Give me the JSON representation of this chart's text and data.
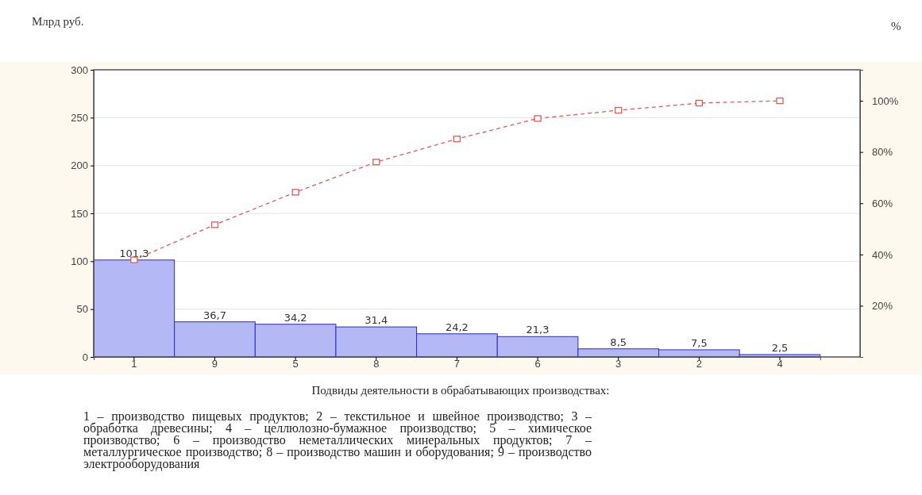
{
  "chart_data": {
    "type": "bar",
    "ylabel": "Млрд руб.",
    "y2label": "%",
    "xlabel": "Подвиды деятельности в обрабатывающих производствах:",
    "categories": [
      "1",
      "9",
      "5",
      "8",
      "7",
      "6",
      "3",
      "2",
      "4"
    ],
    "series": [
      {
        "color": "#b4b8f4",
        "values": [
          101.3,
          36.7,
          34.2,
          31.4,
          24.2,
          21.3,
          8.5,
          7.5,
          2.5
        ],
        "value_labels": [
          "101,3",
          "36,7",
          "34,2",
          "31,4",
          "24,2",
          "21,3",
          "8,5",
          "7,5",
          "2,5"
        ]
      },
      {
        "type": "line",
        "axis": "y2",
        "color": "#e85a5a",
        "marker": "square",
        "line_style": "dashed",
        "values": [
          37.9,
          51.6,
          64.3,
          76.1,
          85.1,
          93.1,
          96.3,
          99.1,
          100
        ]
      }
    ],
    "ylim": [
      0,
      300
    ],
    "yticks": [
      0,
      50,
      100,
      150,
      200,
      250,
      300
    ],
    "y2lim": [
      0,
      112.1
    ],
    "y2ticks": [
      {
        "value": 20,
        "label": "20%"
      },
      {
        "value": 40,
        "label": "40%"
      },
      {
        "value": 60,
        "label": "60%"
      },
      {
        "value": 80,
        "label": "80%"
      },
      {
        "value": 100,
        "label": "100%"
      }
    ],
    "grid": "y",
    "annotations": [
      "1 – производство пищевых продуктов; 2 – текстильное и швейное производство; 3 – обработка древесины; 4 – целлюлозно-бумажное производство; 5 – химическое производство; 6 – производство неметаллических минеральных продуктов; 7 – металлургическое производство; 8 – производство машин и оборудования; 9 – производство электрооборудования"
    ]
  }
}
